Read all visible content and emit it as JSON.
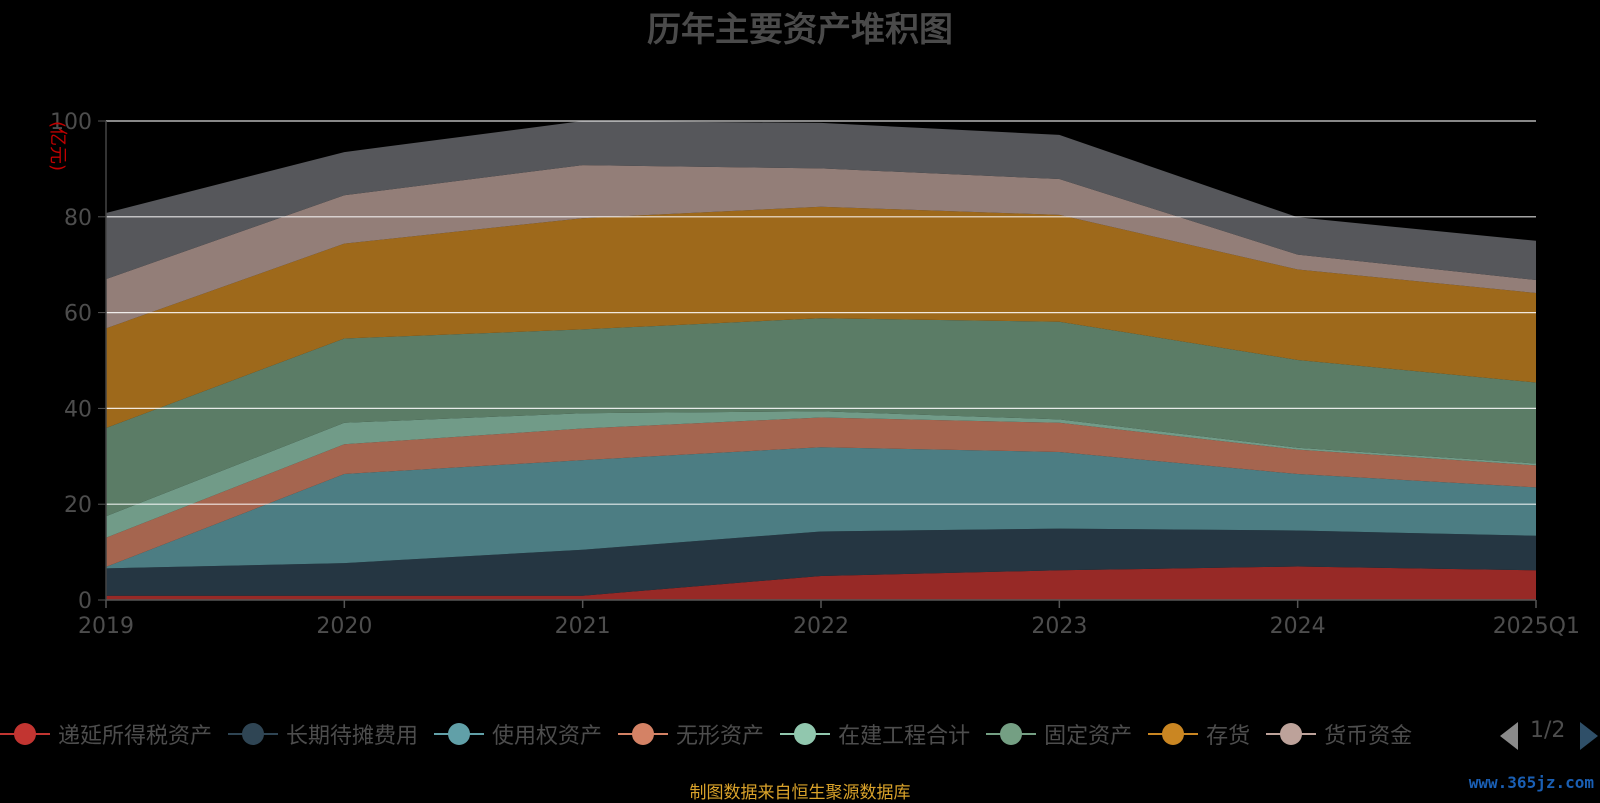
{
  "chart_data": {
    "type": "area",
    "title": "历年主要资产堆积图",
    "ylabel": "(亿元)",
    "xlabel": "",
    "stacked": true,
    "ylim": [
      0,
      100
    ],
    "yticks": [
      0,
      20,
      40,
      60,
      80,
      100
    ],
    "categories": [
      "2019",
      "2020",
      "2021",
      "2022",
      "2023",
      "2024",
      "2025Q1"
    ],
    "series": [
      {
        "name": "递延所得税资产",
        "color": "#c23531",
        "values": [
          0.9,
          0.9,
          0.9,
          5.0,
          6.2,
          7.0,
          6.2
        ]
      },
      {
        "name": "长期待摊费用",
        "color": "#2f4554",
        "values": [
          5.7,
          6.8,
          9.6,
          9.3,
          8.7,
          7.5,
          7.2
        ]
      },
      {
        "name": "使用权资产",
        "color": "#61a0a8",
        "values": [
          0.3,
          18.6,
          18.7,
          17.6,
          16.0,
          11.8,
          10.1
        ]
      },
      {
        "name": "无形资产",
        "color": "#d48265",
        "values": [
          6.1,
          6.2,
          6.6,
          6.2,
          6.1,
          5.1,
          4.6
        ]
      },
      {
        "name": "在建工程合计",
        "color": "#91c7ae",
        "values": [
          4.5,
          4.5,
          3.2,
          1.3,
          0.7,
          0.4,
          0.4
        ]
      },
      {
        "name": "固定资产",
        "color": "#749f83",
        "values": [
          18.4,
          17.6,
          17.5,
          19.4,
          20.4,
          18.3,
          16.9
        ]
      },
      {
        "name": "存货",
        "color": "#ca8622",
        "values": [
          20.8,
          19.8,
          23.2,
          23.3,
          22.3,
          18.9,
          18.7
        ]
      },
      {
        "name": "货币资金",
        "color": "#bda29a",
        "values": [
          10.3,
          10.1,
          11.1,
          8.0,
          7.5,
          3.1,
          2.7
        ]
      },
      {
        "name": "",
        "color": "#6e7074",
        "values": [
          13.8,
          9.0,
          9.5,
          9.5,
          9.2,
          7.8,
          8.2
        ]
      }
    ]
  },
  "legend": {
    "items": [
      "递延所得税资产",
      "长期待摊费用",
      "使用权资产",
      "无形资产",
      "在建工程合计",
      "固定资产",
      "存货",
      "货币资金"
    ],
    "page": "1/2"
  },
  "source_text": "制图数据来自恒生聚源数据库",
  "watermark": "www.365jz.com"
}
